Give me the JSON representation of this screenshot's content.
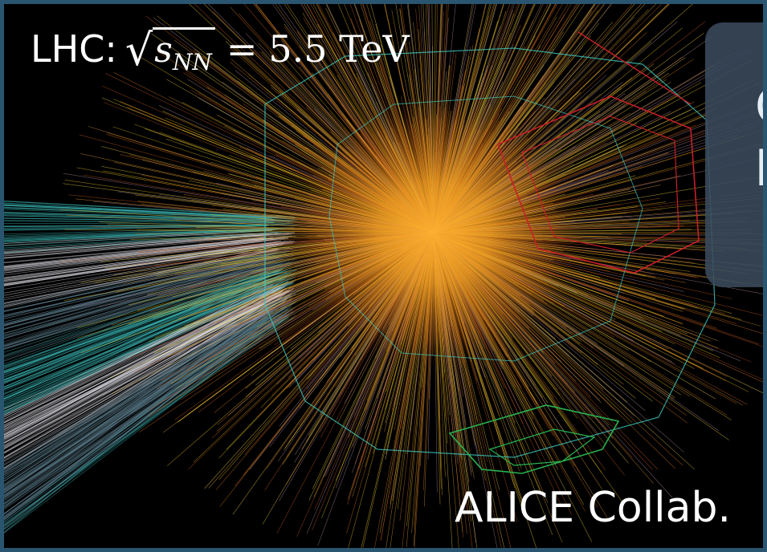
{
  "label": {
    "prefix": "LHC:",
    "radicand": "s",
    "subscript": "NN",
    "equals": "=",
    "value": "5.5 TeV"
  },
  "overlay": {
    "line1": "C",
    "line2": "h"
  },
  "credit": "ALICE Collab.",
  "colors": {
    "background": "#000000",
    "tracks_yellow": "#e8c21a",
    "tracks_orange": "#d9741c",
    "beam_cyan": "#38b2b0",
    "beam_white": "#d8d8e0",
    "detector_cyan": "#3cc8c0",
    "detector_red": "#c81e28",
    "detector_green": "#28b450",
    "overlay_box": "#3a4a5c"
  }
}
